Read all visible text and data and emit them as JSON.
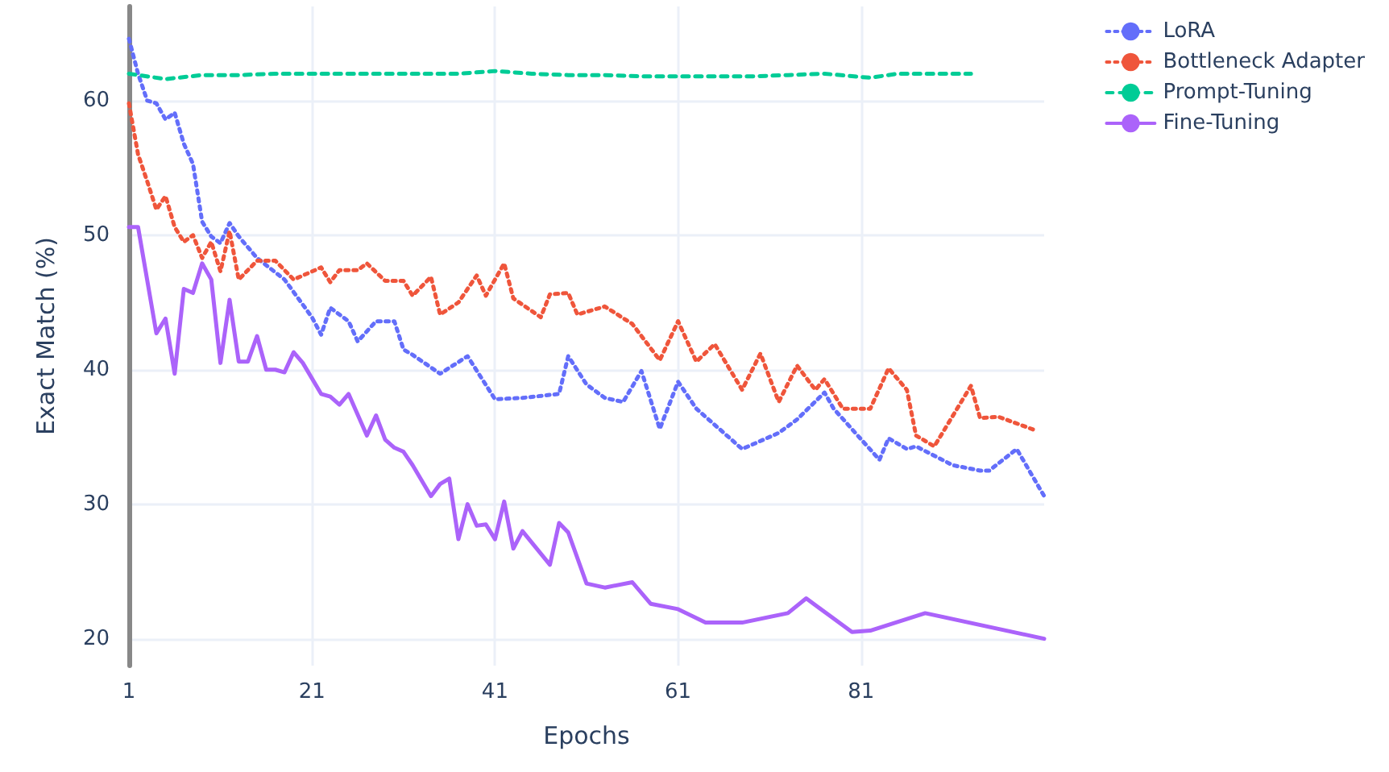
{
  "chart_data": {
    "type": "line",
    "xlabel": "Epochs",
    "ylabel": "Exact Match (%)",
    "xlim": [
      1,
      101
    ],
    "xticks": [
      1,
      21,
      41,
      61,
      81
    ],
    "ylim": [
      18,
      67
    ],
    "yticks": [
      20,
      30,
      40,
      50,
      60
    ],
    "grid": true,
    "legend": "top right",
    "marker": "none",
    "series": [
      {
        "name": "LoRA",
        "color": "#636efa",
        "line_style": "dotted",
        "x": [
          1,
          2,
          3,
          4,
          5,
          6,
          7,
          8,
          9,
          10,
          11,
          12,
          13,
          15,
          18,
          21,
          22,
          23,
          25,
          26,
          28,
          30,
          31,
          32,
          35,
          38,
          41,
          44,
          48,
          49,
          51,
          53,
          55,
          57,
          59,
          61,
          63,
          68,
          72,
          74,
          77,
          78,
          83,
          84,
          86,
          87,
          91,
          94,
          95,
          98,
          101
        ],
        "values": [
          64.6,
          62.0,
          60.0,
          59.8,
          58.6,
          59.1,
          56.8,
          55.3,
          51.0,
          49.9,
          49.4,
          50.9,
          49.9,
          48.3,
          46.7,
          43.9,
          42.6,
          44.6,
          43.6,
          42.1,
          43.6,
          43.6,
          41.5,
          41.1,
          39.7,
          41.0,
          37.8,
          37.9,
          38.2,
          41.0,
          38.9,
          37.9,
          37.6,
          39.9,
          35.6,
          39.1,
          37.1,
          34.1,
          35.3,
          36.3,
          38.3,
          37.1,
          33.3,
          34.9,
          34.1,
          34.3,
          32.9,
          32.5,
          32.5,
          34.1,
          30.6
        ]
      },
      {
        "name": "Bottleneck Adapter",
        "color": "#ef553b",
        "line_style": "dotted",
        "x": [
          1,
          2,
          3,
          4,
          5,
          6,
          7,
          8,
          9,
          10,
          11,
          12,
          13,
          15,
          17,
          19,
          22,
          23,
          24,
          26,
          27,
          29,
          31,
          32,
          34,
          35,
          37,
          39,
          40,
          42,
          43,
          46,
          47,
          49,
          50,
          53,
          56,
          59,
          61,
          63,
          65,
          68,
          70,
          72,
          74,
          76,
          77,
          79,
          82,
          84,
          86,
          87,
          89,
          93,
          94,
          96,
          100
        ],
        "values": [
          59.8,
          56.0,
          54.0,
          51.9,
          52.9,
          50.6,
          49.5,
          50.0,
          48.3,
          49.5,
          47.3,
          50.3,
          46.7,
          48.1,
          48.1,
          46.7,
          47.6,
          46.5,
          47.4,
          47.4,
          47.9,
          46.6,
          46.6,
          45.5,
          46.9,
          44.1,
          45.0,
          47.0,
          45.5,
          47.9,
          45.3,
          43.9,
          45.6,
          45.7,
          44.1,
          44.7,
          43.4,
          40.7,
          43.6,
          40.6,
          41.9,
          38.5,
          41.2,
          37.6,
          40.3,
          38.5,
          39.3,
          37.1,
          37.1,
          40.1,
          38.5,
          35.1,
          34.3,
          38.8,
          36.4,
          36.5,
          35.5
        ]
      },
      {
        "name": "Prompt-Tuning",
        "color": "#00cc96",
        "line_style": "dashed",
        "x": [
          1,
          5,
          9,
          13,
          17,
          21,
          25,
          29,
          33,
          37,
          41,
          45,
          49,
          53,
          57,
          61,
          65,
          69,
          73,
          77,
          82,
          85,
          89,
          93
        ],
        "values": [
          62.0,
          61.6,
          61.9,
          61.9,
          62.0,
          62.0,
          62.0,
          62.0,
          62.0,
          62.0,
          62.2,
          62.0,
          61.9,
          61.9,
          61.8,
          61.8,
          61.8,
          61.8,
          61.9,
          62.0,
          61.7,
          62.0,
          62.0,
          62.0
        ]
      },
      {
        "name": "Fine-Tuning",
        "color": "#ab63fa",
        "line_style": "solid",
        "x": [
          1,
          2,
          4,
          5,
          6,
          7,
          8,
          9,
          10,
          11,
          12,
          13,
          14,
          15,
          16,
          17,
          18,
          19,
          20,
          22,
          23,
          24,
          25,
          27,
          28,
          29,
          30,
          31,
          32,
          34,
          35,
          36,
          37,
          38,
          39,
          40,
          41,
          42,
          43,
          44,
          47,
          48,
          49,
          51,
          53,
          56,
          58,
          61,
          64,
          68,
          73,
          75,
          80,
          82,
          88,
          101
        ],
        "values": [
          50.6,
          50.6,
          42.7,
          43.8,
          39.7,
          46.0,
          45.7,
          47.9,
          46.7,
          40.5,
          45.2,
          40.6,
          40.6,
          42.5,
          40.0,
          40.0,
          39.8,
          41.3,
          40.5,
          38.2,
          38.0,
          37.4,
          38.2,
          35.1,
          36.6,
          34.8,
          34.2,
          33.9,
          32.9,
          30.6,
          31.5,
          31.9,
          27.4,
          30.0,
          28.4,
          28.5,
          27.4,
          30.2,
          26.7,
          28.0,
          25.5,
          28.6,
          27.9,
          24.1,
          23.8,
          24.2,
          22.6,
          22.2,
          21.2,
          21.2,
          21.9,
          23.0,
          20.5,
          20.6,
          21.9,
          20.0
        ]
      }
    ]
  }
}
